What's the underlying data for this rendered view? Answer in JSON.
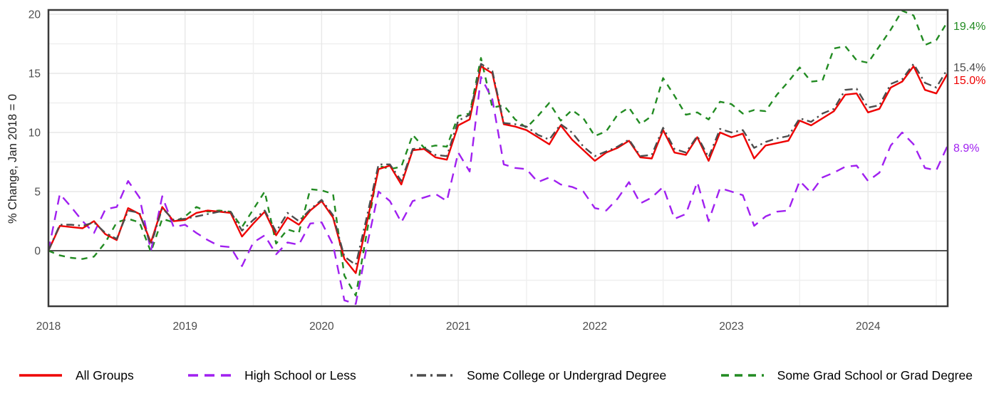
{
  "chart_data": {
    "type": "line",
    "title": "",
    "ylabel": "% Change, Jan 2018 = 0",
    "x_start": "2018-01",
    "x_end": "2024-08",
    "points_per_year": 12,
    "x_tick_labels": [
      "2018",
      "2019",
      "2020",
      "2021",
      "2022",
      "2023",
      "2024"
    ],
    "y_tick_labels": [
      "0",
      "5",
      "10",
      "15",
      "20"
    ],
    "y_ticks": [
      0,
      5,
      10,
      15,
      20
    ],
    "ylim": [
      -4.7,
      20.4
    ],
    "grid": {
      "h_major": [
        5,
        10,
        15,
        20
      ],
      "h_minor": [
        -2.5,
        2.5,
        7.5,
        12.5,
        17.5
      ],
      "v_every_months": 6,
      "color_major": "#e7e7e7",
      "color_minor": "#efefef"
    },
    "axis_color": "#3a3a3a",
    "series": [
      {
        "name": "All Groups",
        "color": "#ee0000",
        "dash": "solid",
        "end_label": "15.0%",
        "values": [
          0,
          2.1,
          2.0,
          1.9,
          2.5,
          1.4,
          0.9,
          3.6,
          3.1,
          0.7,
          3.7,
          2.5,
          2.6,
          3.2,
          3.4,
          3.3,
          3.2,
          1.2,
          2.3,
          3.3,
          1.3,
          2.8,
          2.2,
          3.4,
          4.2,
          2.8,
          -0.7,
          -1.9,
          2.5,
          6.9,
          7.2,
          5.6,
          8.5,
          8.6,
          7.9,
          7.7,
          10.6,
          11.1,
          15.6,
          15.0,
          10.7,
          10.5,
          10.2,
          9.6,
          9.0,
          10.6,
          9.4,
          8.5,
          7.6,
          8.3,
          8.7,
          9.3,
          7.9,
          7.8,
          10.2,
          8.3,
          8.1,
          9.6,
          7.6,
          10.0,
          9.6,
          9.9,
          7.8,
          8.9,
          9.1,
          9.3,
          11.0,
          10.6,
          11.2,
          11.8,
          13.2,
          13.3,
          11.7,
          12.0,
          13.8,
          14.3,
          15.6,
          13.6,
          13.3,
          15.0
        ]
      },
      {
        "name": "High School or Less",
        "color": "#a020f0",
        "dash": "longdash",
        "end_label": "8.9%",
        "values": [
          0,
          4.8,
          3.7,
          2.5,
          1.5,
          3.5,
          3.7,
          5.9,
          4.5,
          0.0,
          4.6,
          2.0,
          2.2,
          1.5,
          0.9,
          0.4,
          0.3,
          -1.3,
          0.7,
          1.3,
          -0.3,
          0.7,
          0.5,
          2.3,
          2.4,
          0.5,
          -4.2,
          -4.5,
          0.5,
          5.0,
          4.2,
          2.4,
          4.2,
          4.5,
          4.8,
          4.2,
          8.3,
          6.7,
          14.7,
          12.8,
          7.3,
          7.0,
          6.9,
          5.8,
          6.2,
          5.6,
          5.4,
          5.0,
          3.6,
          3.4,
          4.4,
          5.8,
          4.0,
          4.5,
          5.4,
          2.7,
          3.1,
          5.8,
          2.5,
          5.3,
          5.0,
          4.7,
          2.1,
          2.9,
          3.3,
          3.4,
          5.9,
          4.9,
          6.2,
          6.6,
          7.1,
          7.2,
          5.9,
          6.6,
          8.9,
          10.0,
          9.0,
          7.0,
          6.8,
          8.9
        ]
      },
      {
        "name": "Some College or Undergrad Degree",
        "color": "#4d4d4d",
        "dash": "dashdot",
        "end_label": "15.4%",
        "values": [
          0,
          2.2,
          2.2,
          2.1,
          2.4,
          1.5,
          1.0,
          3.4,
          3.2,
          0.5,
          3.6,
          2.6,
          2.7,
          2.9,
          3.1,
          3.3,
          3.3,
          1.7,
          2.6,
          3.4,
          1.6,
          3.2,
          2.5,
          3.5,
          4.3,
          3.0,
          -0.5,
          -1.2,
          3.0,
          7.3,
          7.3,
          5.9,
          8.6,
          8.7,
          8.1,
          8.0,
          11.0,
          11.5,
          15.8,
          15.2,
          10.8,
          10.7,
          10.5,
          9.8,
          9.4,
          10.7,
          10.0,
          8.8,
          8.0,
          8.4,
          8.8,
          9.4,
          8.0,
          8.1,
          10.4,
          8.6,
          8.3,
          9.7,
          7.9,
          10.3,
          10.0,
          10.2,
          8.7,
          9.2,
          9.5,
          9.7,
          11.2,
          10.9,
          11.6,
          12.0,
          13.6,
          13.7,
          12.1,
          12.3,
          14.1,
          14.5,
          15.8,
          14.2,
          13.8,
          15.4
        ]
      },
      {
        "name": "Some Grad School or Grad Degree",
        "color": "#228b22",
        "dash": "dash",
        "end_label": "19.4%",
        "values": [
          0,
          -0.4,
          -0.6,
          -0.7,
          -0.5,
          0.7,
          2.4,
          2.7,
          2.4,
          -0.1,
          2.7,
          2.4,
          2.9,
          3.7,
          3.3,
          3.4,
          3.3,
          2.0,
          3.5,
          5.0,
          0.6,
          1.8,
          1.5,
          5.2,
          5.1,
          4.8,
          -2.1,
          -3.8,
          1.7,
          7.2,
          6.9,
          7.1,
          9.8,
          8.7,
          8.9,
          8.8,
          11.4,
          11.6,
          16.3,
          12.1,
          12.3,
          11.1,
          10.4,
          11.4,
          12.5,
          11.0,
          11.9,
          11.2,
          9.7,
          10.1,
          11.5,
          12.1,
          10.7,
          11.4,
          14.6,
          13.1,
          11.5,
          11.7,
          11.1,
          12.6,
          12.4,
          11.6,
          11.9,
          11.8,
          13.2,
          14.3,
          15.5,
          14.3,
          14.4,
          17.1,
          17.3,
          16.1,
          15.9,
          17.3,
          18.7,
          20.3,
          19.9,
          17.4,
          17.8,
          19.4
        ]
      }
    ],
    "legend_position": "bottom"
  }
}
